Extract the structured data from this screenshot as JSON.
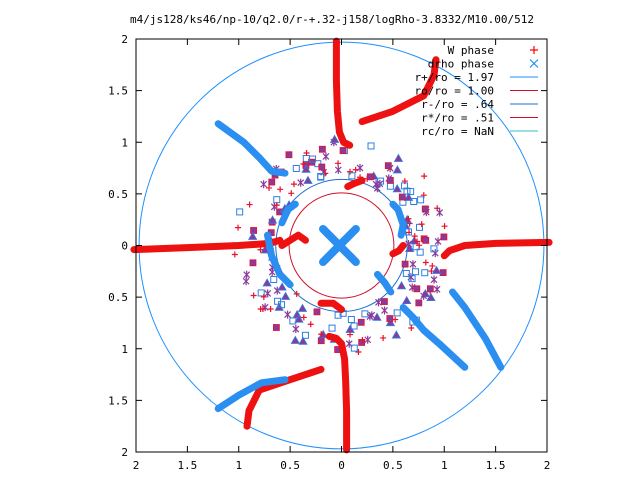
{
  "chart_data": {
    "type": "scatter",
    "title": "m4/js128/ks46/np-10/q2.0/r-+.32-j158/logRho-3.8332/M10.00/512",
    "xlim": [
      -2,
      2
    ],
    "ylim": [
      -2,
      2
    ],
    "x_ticks": [
      {
        "value": -2,
        "label": "2"
      },
      {
        "value": -1.5,
        "label": "1.5"
      },
      {
        "value": -1,
        "label": "1"
      },
      {
        "value": -0.5,
        "label": "0.5"
      },
      {
        "value": 0,
        "label": "0"
      },
      {
        "value": 0.5,
        "label": "0.5"
      },
      {
        "value": 1,
        "label": "1"
      },
      {
        "value": 1.5,
        "label": "1.5"
      },
      {
        "value": 2,
        "label": "2"
      }
    ],
    "y_ticks": [
      {
        "value": 2,
        "label": "2"
      },
      {
        "value": 1.5,
        "label": "1.5"
      },
      {
        "value": 1,
        "label": "1"
      },
      {
        "value": 0.5,
        "label": "0.5"
      },
      {
        "value": 0,
        "label": "0"
      },
      {
        "value": -0.5,
        "label": "0.5"
      },
      {
        "value": -1,
        "label": "1"
      },
      {
        "value": -1.5,
        "label": "1.5"
      },
      {
        "value": -2,
        "label": "2"
      }
    ],
    "grid": false,
    "legend_position": "top-right",
    "legend": [
      {
        "label": "W phase",
        "kind": "plus",
        "color": "#ff0000"
      },
      {
        "label": "drho phase",
        "kind": "cross",
        "color": "#1e8fff"
      },
      {
        "label": "r+/ro = 1.97",
        "kind": "line",
        "color": "#1e8fff"
      },
      {
        "label": "ro/ro = 1.00",
        "kind": "line",
        "color": "#d0102a"
      },
      {
        "label": "r-/ro = .64",
        "kind": "line",
        "color": "#1e6fcf"
      },
      {
        "label": "r*/ro = .51",
        "kind": "line",
        "color": "#d0102a"
      },
      {
        "label": "rc/ro = NaN",
        "kind": "line",
        "color": "#30c0d0"
      }
    ],
    "circles": [
      {
        "r": 1.97,
        "color": "#1e8fff"
      },
      {
        "r": 0.64,
        "color": "#1e6fcf"
      },
      {
        "r": 0.51,
        "color": "#d0102a"
      }
    ],
    "red_arms": [
      [
        [
          0.05,
          -1.98
        ],
        [
          0.05,
          -1.6
        ],
        [
          0.04,
          -1.3
        ],
        [
          0.03,
          -1.1
        ],
        [
          0.0,
          -0.95
        ],
        [
          -0.05,
          -0.9
        ],
        [
          -0.12,
          -0.88
        ]
      ],
      [
        [
          -2.02,
          -0.04
        ],
        [
          -1.5,
          -0.02
        ],
        [
          -1.0,
          0.0
        ],
        [
          -0.7,
          0.02
        ],
        [
          -0.6,
          0.05
        ]
      ],
      [
        [
          2.02,
          0.03
        ],
        [
          1.5,
          0.02
        ],
        [
          1.2,
          0.0
        ],
        [
          1.05,
          -0.05
        ],
        [
          1.0,
          -0.1
        ]
      ],
      [
        [
          -0.05,
          1.98
        ],
        [
          -0.05,
          1.6
        ],
        [
          -0.04,
          1.3
        ],
        [
          -0.02,
          1.1
        ],
        [
          0.02,
          1.0
        ],
        [
          0.08,
          0.97
        ]
      ],
      [
        [
          -0.2,
          -1.2
        ],
        [
          -0.5,
          -1.3
        ],
        [
          -0.8,
          -1.4
        ],
        [
          -0.9,
          -1.6
        ],
        [
          -0.92,
          -1.75
        ]
      ],
      [
        [
          0.2,
          1.2
        ],
        [
          0.5,
          1.3
        ],
        [
          0.8,
          1.45
        ],
        [
          0.9,
          1.65
        ],
        [
          0.92,
          1.8
        ]
      ],
      [
        [
          -0.58,
          0.0
        ],
        [
          -0.5,
          0.05
        ],
        [
          -0.42,
          0.1
        ],
        [
          -0.35,
          0.05
        ]
      ],
      [
        [
          -0.2,
          -0.56
        ],
        [
          -0.08,
          -0.56
        ],
        [
          0.0,
          -0.62
        ]
      ],
      [
        [
          0.06,
          0.57
        ],
        [
          0.12,
          0.6
        ],
        [
          0.2,
          0.63
        ]
      ],
      [
        [
          0.6,
          0.0
        ],
        [
          0.56,
          -0.05
        ],
        [
          0.5,
          -0.08
        ]
      ]
    ],
    "blue_arms": [
      [
        [
          -1.2,
          1.18
        ],
        [
          -0.95,
          1.0
        ],
        [
          -0.8,
          0.85
        ],
        [
          -0.68,
          0.72
        ],
        [
          -0.55,
          0.7
        ]
      ],
      [
        [
          1.2,
          -1.18
        ],
        [
          0.95,
          -0.95
        ],
        [
          0.8,
          -0.82
        ],
        [
          0.7,
          -0.7
        ],
        [
          0.6,
          -0.6
        ]
      ],
      [
        [
          -1.2,
          -1.58
        ],
        [
          -1.0,
          -1.45
        ],
        [
          -0.78,
          -1.33
        ],
        [
          -0.55,
          -1.3
        ]
      ],
      [
        [
          1.55,
          -1.18
        ],
        [
          1.4,
          -0.9
        ],
        [
          1.2,
          -0.6
        ],
        [
          1.08,
          -0.45
        ]
      ],
      [
        [
          -0.72,
          0.1
        ],
        [
          -0.68,
          -0.1
        ],
        [
          -0.6,
          -0.28
        ],
        [
          -0.5,
          -0.38
        ]
      ],
      [
        [
          0.35,
          -0.28
        ],
        [
          0.42,
          -0.36
        ],
        [
          0.48,
          -0.45
        ]
      ],
      [
        [
          -0.45,
          0.4
        ],
        [
          -0.52,
          0.35
        ],
        [
          -0.58,
          0.22
        ]
      ],
      [
        [
          0.58,
          0.1
        ],
        [
          0.6,
          0.2
        ],
        [
          0.55,
          0.35
        ],
        [
          0.5,
          0.4
        ]
      ]
    ],
    "center_cross": {
      "x": -0.02,
      "y": 0.0,
      "half_size": 0.16
    },
    "ring": {
      "r_min": 0.64,
      "r_max": 1.05,
      "count": 210,
      "seed": 7
    }
  }
}
